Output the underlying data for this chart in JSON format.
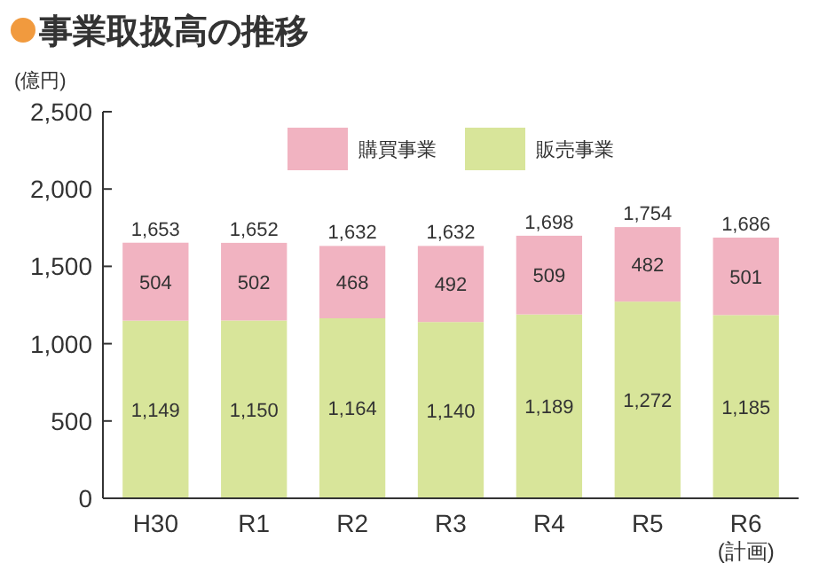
{
  "chart_data": {
    "type": "bar",
    "title": "事業取扱高の推移",
    "ylabel": "(億円)",
    "categories": [
      "H30",
      "R1",
      "R2",
      "R3",
      "R4",
      "R5",
      "R6\n(計画)"
    ],
    "series": [
      {
        "name": "販売事業",
        "color": "#d8e59a",
        "values": [
          1149,
          1150,
          1164,
          1140,
          1189,
          1272,
          1185
        ],
        "value_labels": [
          "1,149",
          "1,150",
          "1,164",
          "1,140",
          "1,189",
          "1,272",
          "1,185"
        ]
      },
      {
        "name": "購買事業",
        "color": "#f1b3c1",
        "values": [
          504,
          502,
          468,
          492,
          509,
          482,
          501
        ],
        "value_labels": [
          "504",
          "502",
          "468",
          "492",
          "509",
          "482",
          "501"
        ]
      }
    ],
    "stacked": true,
    "totals": [
      "1,653",
      "1,652",
      "1,632",
      "1,632",
      "1,698",
      "1,754",
      "1,686"
    ],
    "ylim": [
      0,
      2500
    ],
    "yticks": [
      {
        "value": 0,
        "label": "0"
      },
      {
        "value": 500,
        "label": "500"
      },
      {
        "value": 1000,
        "label": "1,000"
      },
      {
        "value": 1500,
        "label": "1,500"
      },
      {
        "value": 2000,
        "label": "2,000"
      },
      {
        "value": 2500,
        "label": "2,500"
      }
    ],
    "grid": false,
    "legend": "top"
  }
}
